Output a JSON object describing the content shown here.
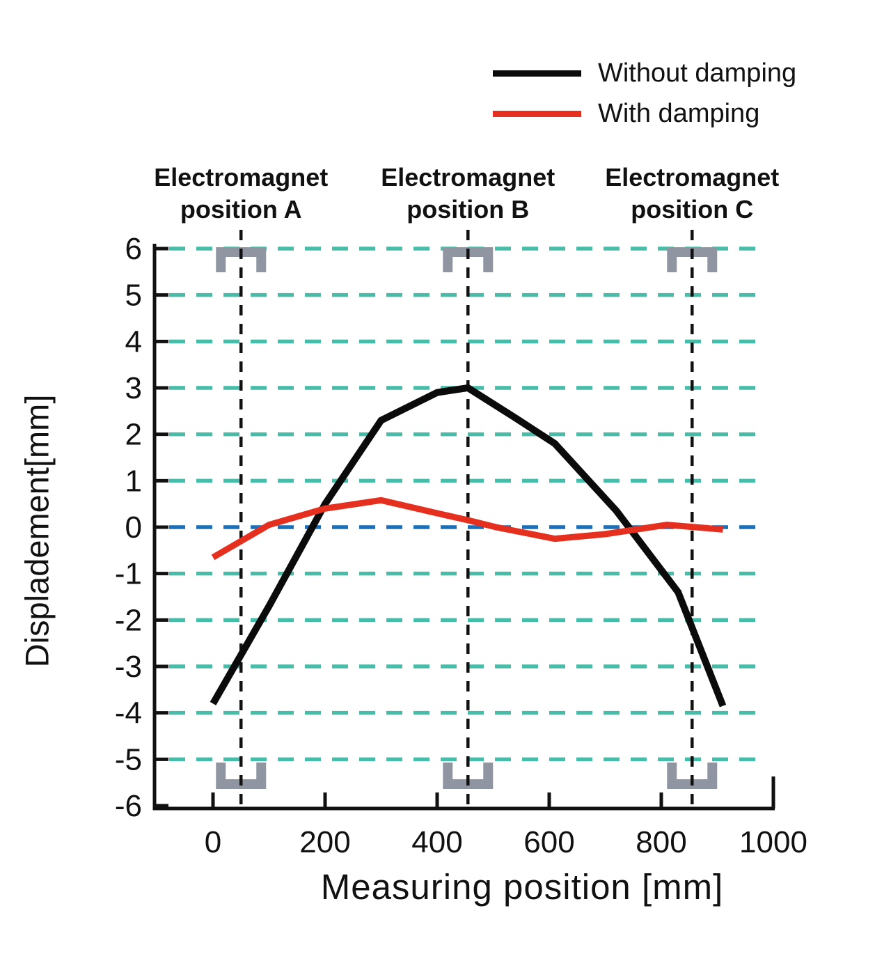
{
  "chart_data": {
    "type": "line",
    "title": "",
    "xlabel": "Measuring position [mm]",
    "ylabel": "Displadement[mm]",
    "xlim": [
      0,
      1000
    ],
    "ylim": [
      -6,
      6
    ],
    "x_ticks": [
      0,
      200,
      400,
      600,
      800,
      1000
    ],
    "y_ticks": [
      6,
      5,
      4,
      3,
      2,
      1,
      0,
      -1,
      -2,
      -3,
      -4,
      -5,
      -6
    ],
    "grid": "horizontal-dashed",
    "grid_color": "#47bda9",
    "zero_line_color": "#1b6fb8",
    "vertical_guide_color": "#111111",
    "bracket_color": "#9095a2",
    "legend_position": "top-right",
    "series": [
      {
        "name": "Without damping",
        "color": "#0b0b0b",
        "points": [
          [
            0,
            -3.8
          ],
          [
            100,
            -1.7
          ],
          [
            200,
            0.5
          ],
          [
            300,
            2.3
          ],
          [
            400,
            2.9
          ],
          [
            455,
            3.0
          ],
          [
            540,
            2.35
          ],
          [
            610,
            1.8
          ],
          [
            720,
            0.35
          ],
          [
            830,
            -1.4
          ],
          [
            910,
            -3.85
          ]
        ]
      },
      {
        "name": "With damping",
        "color": "#e5301f",
        "points": [
          [
            0,
            -0.65
          ],
          [
            100,
            0.05
          ],
          [
            200,
            0.4
          ],
          [
            300,
            0.58
          ],
          [
            400,
            0.3
          ],
          [
            455,
            0.15
          ],
          [
            505,
            0.0
          ],
          [
            610,
            -0.25
          ],
          [
            700,
            -0.15
          ],
          [
            810,
            0.05
          ],
          [
            910,
            -0.05
          ]
        ]
      }
    ],
    "electromagnets": [
      {
        "line1": "Electromagnet",
        "line2": "position A",
        "x_mm": 50
      },
      {
        "line1": "Electromagnet",
        "line2": "position B",
        "x_mm": 455
      },
      {
        "line1": "Electromagnet",
        "line2": "position C",
        "x_mm": 855
      }
    ]
  }
}
